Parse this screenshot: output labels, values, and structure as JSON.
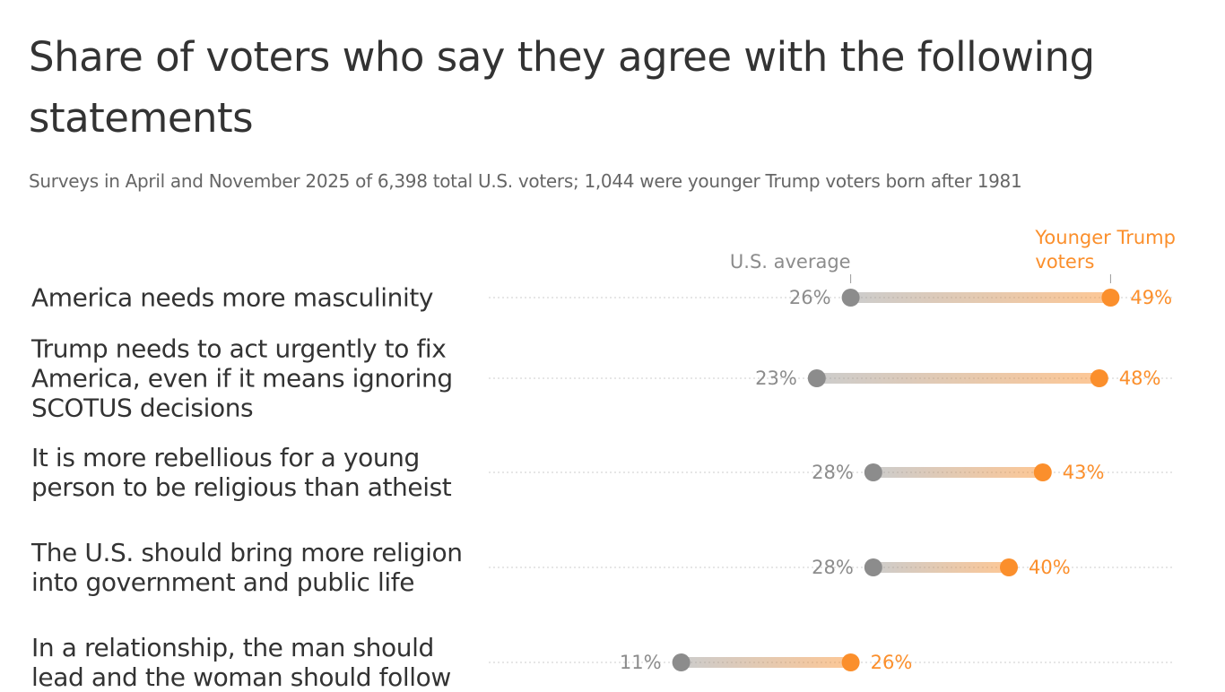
{
  "chart_data": {
    "type": "dumbbell",
    "title": "Share of voters who say they agree with the following statements",
    "subtitle": "Surveys in April and November 2025 of 6,398 total U.S. voters; 1,044 were younger Trump voters born after 1981",
    "categories": [
      "America needs more masculinity",
      "Trump needs to act urgently to fix America, even if it means ignoring SCOTUS decisions",
      "It is more rebellious for a young person to be religious than atheist",
      "The U.S. should bring more religion into government and public life",
      "In a relationship, the man should lead and the woman should follow"
    ],
    "series": [
      {
        "name": "U.S. average",
        "color": "#8c8c8c",
        "values": [
          26,
          23,
          28,
          28,
          11
        ],
        "value_labels": [
          "26%",
          "23%",
          "28%",
          "28%",
          "11%"
        ]
      },
      {
        "name": "Younger Trump voters",
        "color": "#fb8f2c",
        "values": [
          49,
          48,
          43,
          40,
          26
        ],
        "value_labels": [
          "49%",
          "48%",
          "43%",
          "40%",
          "26%"
        ]
      }
    ]
  }
}
